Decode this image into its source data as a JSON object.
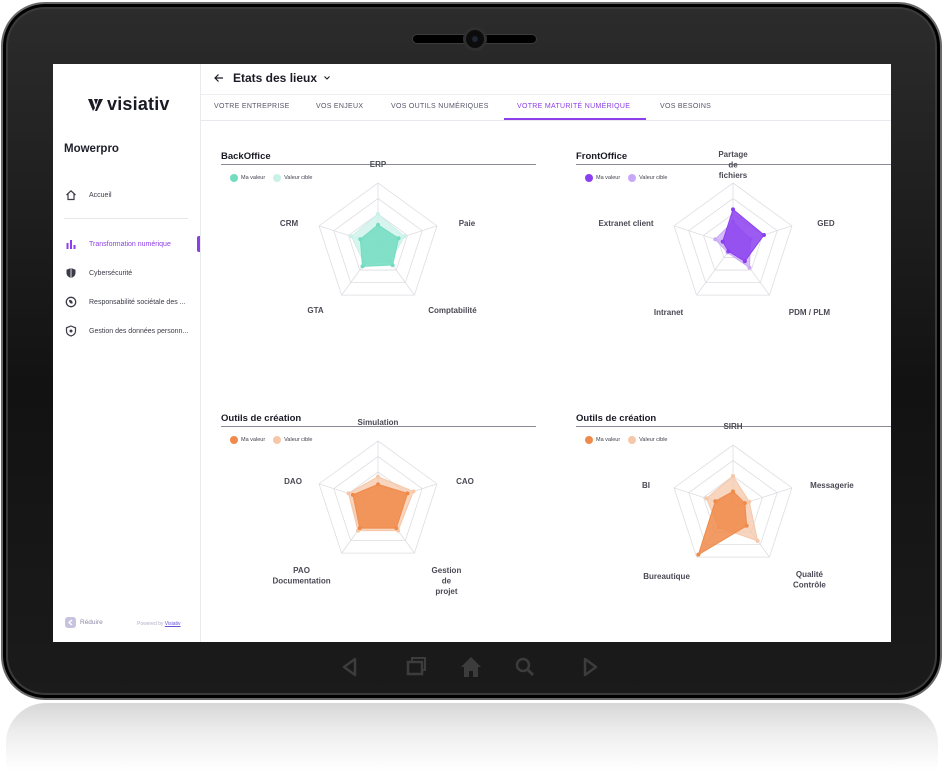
{
  "app": {
    "logo_text": "visiativ",
    "company": "Mowerpro",
    "accent_color": "#8c3ee8"
  },
  "sidebar": {
    "items": [
      {
        "label": "Accueil",
        "icon": "home-icon"
      },
      {
        "label": "Transformation numérique",
        "icon": "bar-chart-icon",
        "active": true
      },
      {
        "label": "Cybersécurité",
        "icon": "shield-icon"
      },
      {
        "label": "Responsabilité sociétale des ...",
        "icon": "leaf-icon"
      },
      {
        "label": "Gestion des données personn...",
        "icon": "shield-lock-icon"
      }
    ],
    "reduce_label": "Réduire",
    "powered_prefix": "Powered by",
    "powered_link": "Visiativ"
  },
  "header": {
    "title": "Etats des lieux",
    "tabs": [
      {
        "label": "VOTRE ENTREPRISE"
      },
      {
        "label": "VOS ENJEUX"
      },
      {
        "label": "VOS OUTILS NUMÉRIQUES"
      },
      {
        "label": "VOTRE MATURITÉ NUMÉRIQUE",
        "active": true
      },
      {
        "label": "VOS BESOINS"
      }
    ]
  },
  "legend": {
    "mine": "Ma valeur",
    "target": "Valeur cible"
  },
  "chart_data": [
    {
      "type": "radar",
      "title": "BackOffice",
      "axes": [
        "ERP",
        "Paie",
        "Comptabilité",
        "GTA",
        "CRM"
      ],
      "ylim": [
        0,
        4
      ],
      "series": [
        {
          "name": "Ma valeur",
          "values": [
            1.3,
            1.4,
            1.6,
            1.7,
            1.2
          ],
          "color": "#72dcc0"
        },
        {
          "name": "Valeur cible",
          "values": [
            2.0,
            1.8,
            1.3,
            1.5,
            1.8
          ],
          "color": "#c9f1e8"
        }
      ]
    },
    {
      "type": "radar",
      "title": "FrontOffice",
      "axes": [
        "Partage de fichiers",
        "GED",
        "PDM / PLM",
        "Intranet",
        "Extranet client"
      ],
      "ylim": [
        0,
        4
      ],
      "series": [
        {
          "name": "Ma valeur",
          "values": [
            2.3,
            2.1,
            1.3,
            0.5,
            0.7
          ],
          "color": "#8b3ff0"
        },
        {
          "name": "Valeur cible",
          "values": [
            1.5,
            1.2,
            1.8,
            0.6,
            1.2
          ],
          "color": "#c9a8f7"
        }
      ]
    },
    {
      "type": "radar",
      "title": "Outils de création",
      "axes": [
        "Simulation",
        "CAO",
        "Gestion de projet",
        "PAO Documentation",
        "DAO"
      ],
      "ylim": [
        0,
        4
      ],
      "series": [
        {
          "name": "Ma valeur",
          "values": [
            1.2,
            2.0,
            2.0,
            2.0,
            1.7
          ],
          "color": "#f08a4a"
        },
        {
          "name": "Valeur cible",
          "values": [
            1.7,
            2.4,
            2.2,
            2.2,
            2.0
          ],
          "color": "#f6c7a8"
        }
      ]
    },
    {
      "type": "radar",
      "title": "Outils de création",
      "axes": [
        "SIRH",
        "Messagerie",
        "Qualité Contrôle",
        "Bureautique",
        "BI"
      ],
      "ylim": [
        0,
        4
      ],
      "series": [
        {
          "name": "Ma valeur",
          "values": [
            1.0,
            0.8,
            1.5,
            3.8,
            1.2
          ],
          "color": "#f08a4a"
        },
        {
          "name": "Valeur cible",
          "values": [
            2.0,
            1.1,
            2.7,
            1.6,
            1.8
          ],
          "color": "#f6c7a8"
        }
      ]
    }
  ]
}
